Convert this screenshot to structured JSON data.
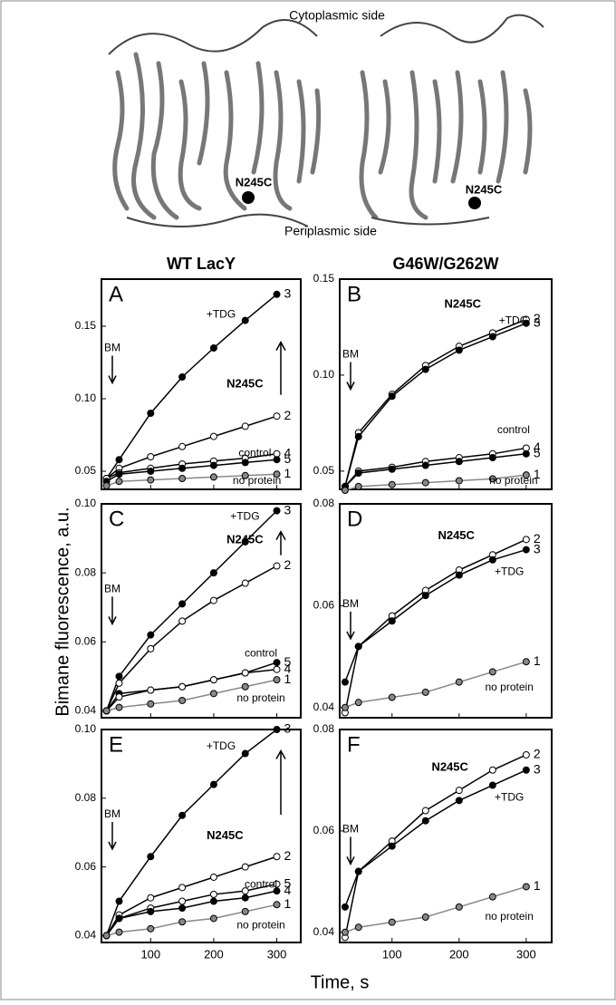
{
  "structure": {
    "top_label": "Cytoplasmic side",
    "bottom_label": "Periplasmic side",
    "site_labels": [
      "N245C",
      "N245C"
    ]
  },
  "column_titles": [
    "WT LacY",
    "G46W/G262W"
  ],
  "y_label": "Bimane fluorescence, a.u.",
  "x_label": "Time, s",
  "chart_data": [
    {
      "type": "scatter",
      "label": "A",
      "x": [
        30,
        50,
        100,
        150,
        200,
        250,
        300
      ],
      "xlim": [
        22,
        338
      ],
      "xticks": [
        100,
        200,
        300
      ],
      "xtick_labels": false,
      "ylim": [
        0.0375,
        0.1825
      ],
      "yticks": [
        0.05,
        {
          "value": 0.1,
          "label": "0.10"
        },
        0.15
      ],
      "annotations": [
        "+TDG",
        "N245C",
        "control",
        "no protein"
      ],
      "arrow_label": "BM",
      "change_arrow": true,
      "series": [
        {
          "name": "3",
          "color": "#000000",
          "marker": "filled",
          "values": [
            0.045,
            0.058,
            0.09,
            0.115,
            0.135,
            0.154,
            0.172
          ]
        },
        {
          "name": "2",
          "color": "#000000",
          "marker": "open",
          "values": [
            0.045,
            0.052,
            0.06,
            0.067,
            0.074,
            0.081,
            0.088
          ]
        },
        {
          "name": "4",
          "color": "#000000",
          "marker": "open",
          "values": [
            0.045,
            0.049,
            0.052,
            0.055,
            0.057,
            0.059,
            0.062
          ]
        },
        {
          "name": "5",
          "color": "#000000",
          "marker": "filled",
          "values": [
            0.043,
            0.048,
            0.05,
            0.052,
            0.054,
            0.056,
            0.058
          ]
        },
        {
          "name": "1",
          "color": "#888888",
          "marker": "filled",
          "values": [
            0.04,
            0.043,
            0.044,
            0.045,
            0.046,
            0.047,
            0.048
          ]
        }
      ]
    },
    {
      "type": "scatter",
      "label": "B",
      "x": [
        30,
        50,
        100,
        150,
        200,
        250,
        300
      ],
      "xlim": [
        22,
        338
      ],
      "xticks": [
        100,
        200,
        300
      ],
      "xtick_labels": false,
      "ylim": [
        0.0405,
        0.15
      ],
      "yticks": [
        0.05,
        {
          "value": 0.1,
          "label": "0.10"
        },
        0.15
      ],
      "annotations": [
        "N245C",
        "+TDG",
        "control",
        "no protein"
      ],
      "arrow_label": "BM",
      "change_arrow": false,
      "series": [
        {
          "name": "2",
          "color": "#000000",
          "marker": "open",
          "values": [
            0.042,
            0.07,
            0.09,
            0.105,
            0.115,
            0.122,
            0.129
          ]
        },
        {
          "name": "3",
          "color": "#000000",
          "marker": "filled",
          "values": [
            0.042,
            0.068,
            0.089,
            0.103,
            0.113,
            0.12,
            0.127
          ]
        },
        {
          "name": "4",
          "color": "#000000",
          "marker": "open",
          "values": [
            0.042,
            0.05,
            0.052,
            0.055,
            0.057,
            0.059,
            0.062
          ]
        },
        {
          "name": "5",
          "color": "#000000",
          "marker": "filled",
          "values": [
            0.042,
            0.049,
            0.051,
            0.053,
            0.055,
            0.057,
            0.059
          ]
        },
        {
          "name": "1",
          "color": "#888888",
          "marker": "filled",
          "values": [
            0.04,
            0.042,
            0.043,
            0.044,
            0.045,
            0.046,
            0.048
          ]
        }
      ]
    },
    {
      "type": "scatter",
      "label": "C",
      "x": [
        30,
        50,
        100,
        150,
        200,
        250,
        300
      ],
      "xlim": [
        22,
        338
      ],
      "xticks": [
        100,
        200,
        300
      ],
      "xtick_labels": false,
      "ylim": [
        0.038,
        0.1
      ],
      "yticks": [
        0.04,
        0.06,
        0.08,
        {
          "value": 0.1,
          "label": "0.10"
        }
      ],
      "annotations": [
        "+TDG",
        "N245C",
        "control",
        "no protein"
      ],
      "arrow_label": "BM",
      "change_arrow": true,
      "series": [
        {
          "name": "3",
          "color": "#000000",
          "marker": "filled",
          "values": [
            0.04,
            0.05,
            0.062,
            0.071,
            0.08,
            0.089,
            0.098
          ]
        },
        {
          "name": "2",
          "color": "#000000",
          "marker": "open",
          "values": [
            0.04,
            0.048,
            0.058,
            0.066,
            0.072,
            0.077,
            0.082
          ]
        },
        {
          "name": "5",
          "color": "#000000",
          "marker": "filled",
          "values": [
            0.04,
            0.045,
            0.046,
            0.047,
            0.049,
            0.051,
            0.054
          ]
        },
        {
          "name": "4",
          "color": "#000000",
          "marker": "open",
          "values": [
            0.04,
            0.044,
            0.046,
            0.047,
            0.049,
            0.051,
            0.052
          ]
        },
        {
          "name": "1",
          "color": "#888888",
          "marker": "filled",
          "values": [
            0.04,
            0.041,
            0.042,
            0.043,
            0.045,
            0.047,
            0.049
          ]
        }
      ]
    },
    {
      "type": "scatter",
      "label": "D",
      "x": [
        30,
        50,
        100,
        150,
        200,
        250,
        300
      ],
      "xlim": [
        22,
        338
      ],
      "xticks": [
        100,
        200,
        300
      ],
      "xtick_labels": false,
      "ylim": [
        0.038,
        0.08
      ],
      "yticks": [
        0.04,
        0.06,
        0.08
      ],
      "annotations": [
        "N245C",
        "+TDG",
        "no protein"
      ],
      "arrow_label": "BM",
      "change_arrow": false,
      "series": [
        {
          "name": "2",
          "color": "#000000",
          "marker": "open",
          "values": [
            0.039,
            0.052,
            0.058,
            0.063,
            0.067,
            0.07,
            0.073
          ]
        },
        {
          "name": "3",
          "color": "#000000",
          "marker": "filled",
          "values": [
            0.045,
            0.052,
            0.057,
            0.062,
            0.066,
            0.069,
            0.071
          ]
        },
        {
          "name": "1",
          "color": "#888888",
          "marker": "filled",
          "values": [
            0.04,
            0.041,
            0.042,
            0.043,
            0.045,
            0.047,
            0.049
          ]
        }
      ]
    },
    {
      "type": "scatter",
      "label": "E",
      "x": [
        30,
        50,
        100,
        150,
        200,
        250,
        300
      ],
      "xlim": [
        22,
        338
      ],
      "xticks": [
        100,
        200,
        300
      ],
      "xtick_labels": true,
      "ylim": [
        0.038,
        0.1
      ],
      "yticks": [
        0.04,
        0.06,
        0.08,
        {
          "value": 0.1,
          "label": "0.10"
        }
      ],
      "annotations": [
        "+TDG",
        "N245C",
        "control",
        "no protein"
      ],
      "arrow_label": "BM",
      "change_arrow": true,
      "series": [
        {
          "name": "3",
          "color": "#000000",
          "marker": "filled",
          "values": [
            0.04,
            0.05,
            0.063,
            0.075,
            0.084,
            0.093,
            0.1
          ]
        },
        {
          "name": "2",
          "color": "#000000",
          "marker": "open",
          "values": [
            0.04,
            0.046,
            0.051,
            0.054,
            0.057,
            0.06,
            0.063
          ]
        },
        {
          "name": "5",
          "color": "#000000",
          "marker": "open",
          "values": [
            0.04,
            0.045,
            0.048,
            0.05,
            0.052,
            0.053,
            0.055
          ]
        },
        {
          "name": "4",
          "color": "#000000",
          "marker": "filled",
          "values": [
            0.04,
            0.045,
            0.047,
            0.048,
            0.05,
            0.051,
            0.053
          ]
        },
        {
          "name": "1",
          "color": "#888888",
          "marker": "filled",
          "values": [
            0.04,
            0.041,
            0.042,
            0.044,
            0.045,
            0.047,
            0.049
          ]
        }
      ]
    },
    {
      "type": "scatter",
      "label": "F",
      "x": [
        30,
        50,
        100,
        150,
        200,
        250,
        300
      ],
      "xlim": [
        22,
        338
      ],
      "xticks": [
        100,
        200,
        300
      ],
      "xtick_labels": true,
      "ylim": [
        0.038,
        0.08
      ],
      "yticks": [
        0.04,
        0.06,
        0.08
      ],
      "annotations": [
        "N245C",
        "+TDG",
        "no protein"
      ],
      "arrow_label": "BM",
      "change_arrow": false,
      "series": [
        {
          "name": "2",
          "color": "#000000",
          "marker": "open",
          "values": [
            0.039,
            0.052,
            0.058,
            0.064,
            0.068,
            0.072,
            0.075
          ]
        },
        {
          "name": "3",
          "color": "#000000",
          "marker": "filled",
          "values": [
            0.045,
            0.052,
            0.057,
            0.062,
            0.066,
            0.069,
            0.072
          ]
        },
        {
          "name": "1",
          "color": "#888888",
          "marker": "filled",
          "values": [
            0.04,
            0.041,
            0.042,
            0.043,
            0.045,
            0.047,
            0.049
          ]
        }
      ]
    }
  ]
}
